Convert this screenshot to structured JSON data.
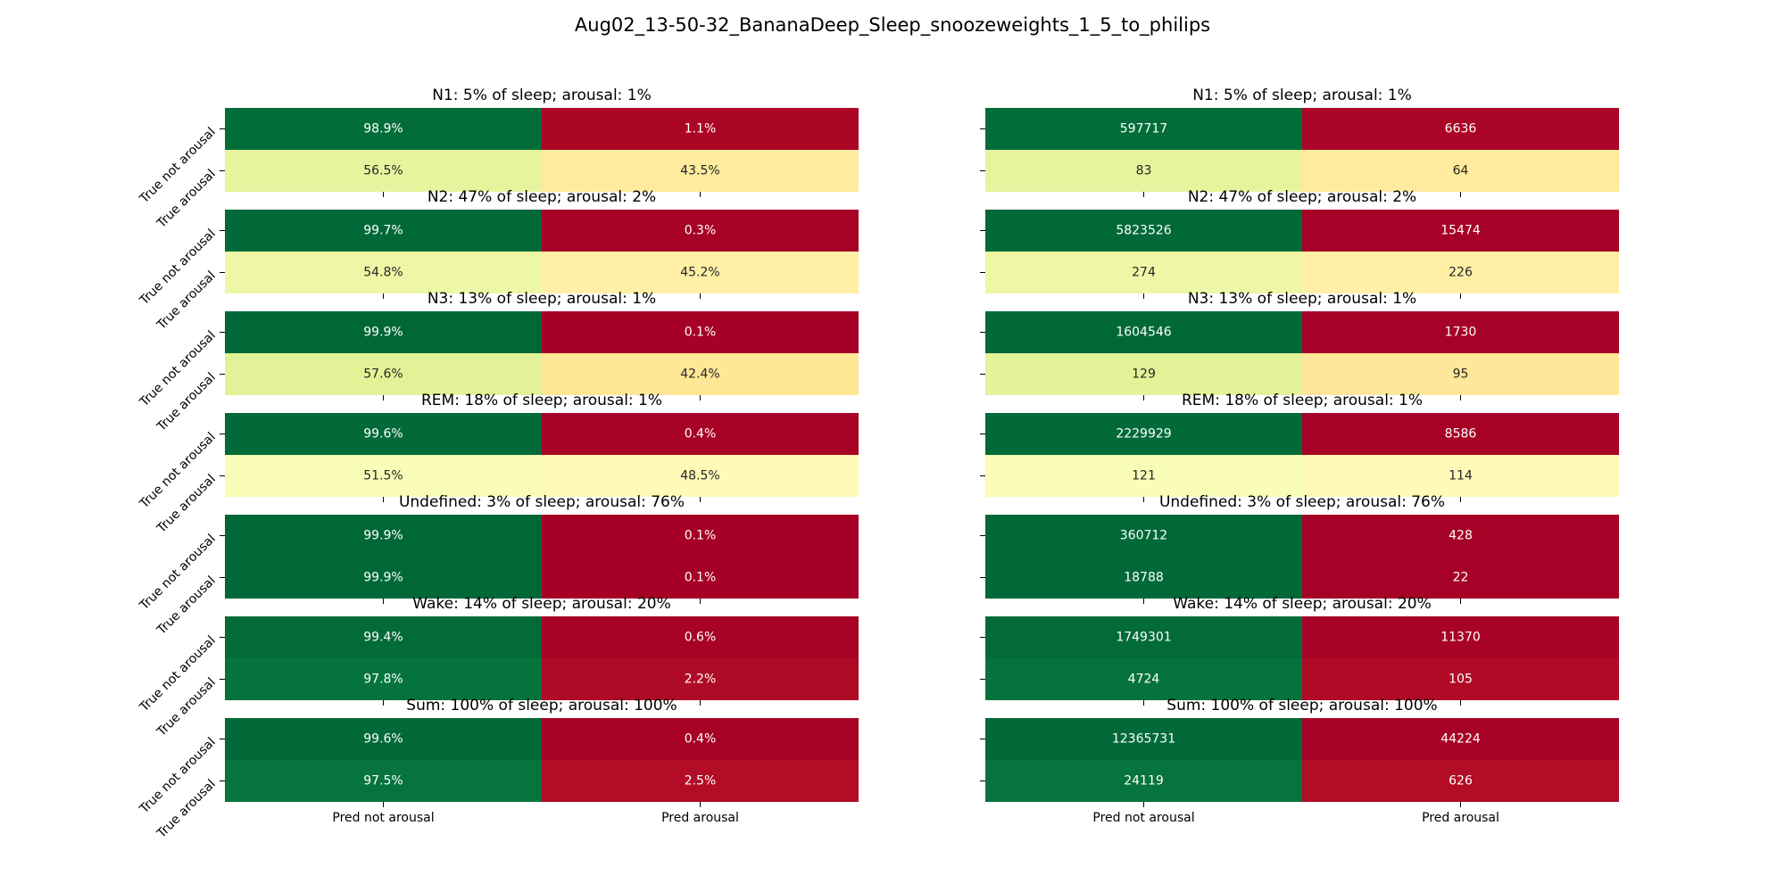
{
  "figure_title": "Aug02_13-50-32_BananaDeep_Sleep_snoozeweights_1_5_to_philips",
  "chart_data": {
    "type": "heatmap",
    "x_tick_labels": [
      "Pred not arousal",
      "Pred arousal"
    ],
    "y_tick_labels": [
      "True not arousal",
      "True arousal"
    ],
    "colormap": "RdYlGn",
    "panels": [
      {
        "title": "N1: 5% of sleep; arousal: 1%",
        "percent": [
          [
            "98.9%",
            "1.1%"
          ],
          [
            "56.5%",
            "43.5%"
          ]
        ],
        "counts": [
          [
            "597717",
            "6636"
          ],
          [
            "83",
            "64"
          ]
        ]
      },
      {
        "title": "N2: 47% of sleep; arousal: 2%",
        "percent": [
          [
            "99.7%",
            "0.3%"
          ],
          [
            "54.8%",
            "45.2%"
          ]
        ],
        "counts": [
          [
            "5823526",
            "15474"
          ],
          [
            "274",
            "226"
          ]
        ]
      },
      {
        "title": "N3: 13% of sleep; arousal: 1%",
        "percent": [
          [
            "99.9%",
            "0.1%"
          ],
          [
            "57.6%",
            "42.4%"
          ]
        ],
        "counts": [
          [
            "1604546",
            "1730"
          ],
          [
            "129",
            "95"
          ]
        ]
      },
      {
        "title": "REM: 18% of sleep; arousal: 1%",
        "percent": [
          [
            "99.6%",
            "0.4%"
          ],
          [
            "51.5%",
            "48.5%"
          ]
        ],
        "counts": [
          [
            "2229929",
            "8586"
          ],
          [
            "121",
            "114"
          ]
        ]
      },
      {
        "title": "Undefined: 3% of sleep; arousal: 76%",
        "percent": [
          [
            "99.9%",
            "0.1%"
          ],
          [
            "99.9%",
            "0.1%"
          ]
        ],
        "counts": [
          [
            "360712",
            "428"
          ],
          [
            "18788",
            "22"
          ]
        ]
      },
      {
        "title": "Wake: 14% of sleep; arousal: 20%",
        "percent": [
          [
            "99.4%",
            "0.6%"
          ],
          [
            "97.8%",
            "2.2%"
          ]
        ],
        "counts": [
          [
            "1749301",
            "11370"
          ],
          [
            "4724",
            "105"
          ]
        ]
      },
      {
        "title": "Sum: 100% of sleep; arousal: 100%",
        "percent": [
          [
            "99.6%",
            "0.4%"
          ],
          [
            "97.5%",
            "2.5%"
          ]
        ],
        "counts": [
          [
            "12365731",
            "44224"
          ],
          [
            "24119",
            "626"
          ]
        ]
      }
    ]
  }
}
